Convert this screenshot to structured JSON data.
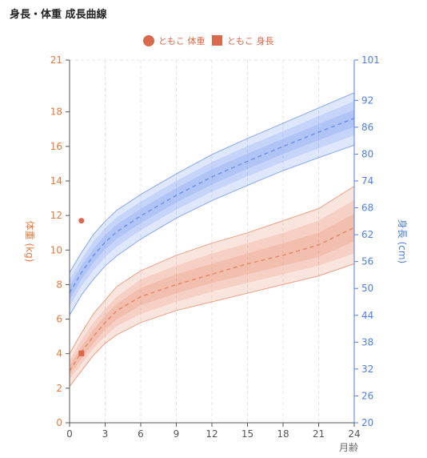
{
  "page": {
    "title": "身長・体重 成長曲線"
  },
  "chart_data": {
    "type": "line",
    "title": "身長・体重 成長曲線",
    "xlabel": "月齢",
    "ylabel_left": "体重 (kg)",
    "ylabel_right": "身長 (cm)",
    "xlim": [
      0,
      24
    ],
    "ylim_left": [
      0,
      21
    ],
    "ylim_right": [
      20,
      101
    ],
    "x_ticks": [
      0,
      3,
      6,
      9,
      12,
      15,
      18,
      21,
      24
    ],
    "y_ticks_left": [
      0,
      2,
      4,
      6,
      8,
      10,
      12,
      14,
      16,
      18,
      21
    ],
    "y_ticks_right": [
      20,
      26,
      32,
      38,
      44,
      50,
      56,
      62,
      68,
      74,
      80,
      86,
      92,
      101
    ],
    "grid": true,
    "legend_position": "top-center",
    "legend": [
      {
        "label": "ともこ 体重",
        "marker": "circle",
        "color": "#d9694a"
      },
      {
        "label": "ともこ 身長",
        "marker": "square",
        "color": "#d9694a"
      }
    ],
    "colors": {
      "weight": "#e8896a",
      "height": "#6f93f0",
      "point": "#d9694a"
    },
    "months": [
      0,
      1,
      2,
      3,
      4,
      6,
      9,
      12,
      15,
      18,
      21,
      24
    ],
    "weight_bands": {
      "p3": [
        2.1,
        3.0,
        3.9,
        4.6,
        5.1,
        5.8,
        6.5,
        7.0,
        7.5,
        8.0,
        8.5,
        9.2
      ],
      "p10": [
        2.5,
        3.4,
        4.3,
        5.0,
        5.6,
        6.3,
        7.0,
        7.6,
        8.1,
        8.6,
        9.1,
        9.8
      ],
      "p25": [
        2.8,
        3.7,
        4.6,
        5.4,
        6.0,
        6.8,
        7.5,
        8.1,
        8.6,
        9.1,
        9.6,
        10.5
      ],
      "p50": [
        3.0,
        4.1,
        5.0,
        5.8,
        6.5,
        7.3,
        8.0,
        8.6,
        9.2,
        9.7,
        10.3,
        11.3
      ],
      "p75": [
        3.3,
        4.4,
        5.4,
        6.2,
        6.9,
        7.8,
        8.6,
        9.2,
        9.8,
        10.4,
        11.0,
        12.1
      ],
      "p90": [
        3.6,
        4.8,
        5.8,
        6.6,
        7.3,
        8.3,
        9.1,
        9.8,
        10.4,
        11.0,
        11.7,
        12.9
      ],
      "p97": [
        4.0,
        5.2,
        6.3,
        7.1,
        7.9,
        8.8,
        9.7,
        10.4,
        11.0,
        11.7,
        12.4,
        13.7
      ]
    },
    "height_bands": {
      "p3": [
        44.0,
        48.5,
        52.0,
        55.0,
        57.3,
        61.0,
        65.7,
        69.6,
        73.0,
        76.3,
        79.2,
        82.0
      ],
      "p10": [
        46.0,
        50.5,
        54.0,
        57.0,
        59.4,
        63.0,
        67.6,
        71.6,
        75.0,
        78.3,
        81.3,
        84.2
      ],
      "p25": [
        47.5,
        52.0,
        55.7,
        58.7,
        61.1,
        64.6,
        69.2,
        73.2,
        76.7,
        80.0,
        83.1,
        86.1
      ],
      "p50": [
        49.0,
        53.5,
        57.3,
        60.3,
        62.7,
        66.2,
        70.8,
        74.9,
        78.4,
        81.7,
        84.9,
        88.0
      ],
      "p75": [
        50.5,
        55.0,
        58.8,
        61.9,
        64.3,
        67.8,
        72.4,
        76.6,
        80.1,
        83.4,
        86.7,
        89.9
      ],
      "p90": [
        52.0,
        56.5,
        60.5,
        63.5,
        65.9,
        69.4,
        74.0,
        78.2,
        81.8,
        85.1,
        88.5,
        91.8
      ],
      "p97": [
        53.5,
        58.0,
        62.0,
        65.0,
        67.5,
        71.0,
        75.6,
        79.9,
        83.5,
        86.9,
        90.3,
        93.7
      ]
    },
    "points": [
      {
        "series": "ともこ 体重",
        "month": 1,
        "value": 11.7,
        "axis": "left",
        "marker": "circle"
      },
      {
        "series": "ともこ 身長",
        "month": 1,
        "value": 35.5,
        "axis": "right",
        "marker": "square"
      }
    ]
  }
}
